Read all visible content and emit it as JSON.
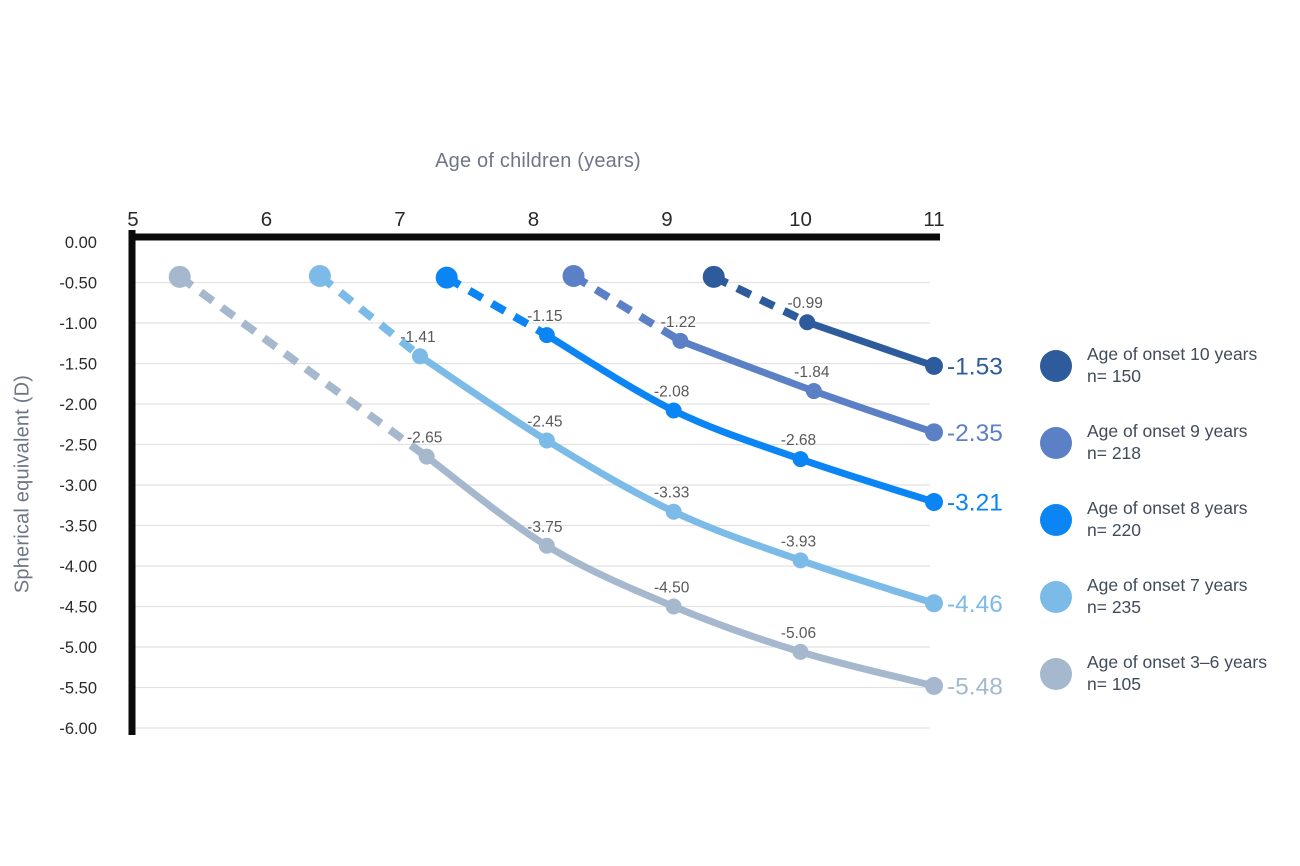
{
  "chart_data": {
    "type": "line",
    "xlabel": "Age of children (years)",
    "ylabel": "Spherical equivalent (D)",
    "xlim": [
      5,
      11
    ],
    "ylim": [
      -6,
      0
    ],
    "x_ticks": [
      "5",
      "6",
      "7",
      "8",
      "9",
      "10",
      "11"
    ],
    "y_ticks": [
      {
        "value": 0,
        "label": "0.00"
      },
      {
        "value": -0.5,
        "label": "-0.50"
      },
      {
        "value": -1,
        "label": "-1.00"
      },
      {
        "value": -1.5,
        "label": "-1.50"
      },
      {
        "value": -2,
        "label": "-2.00"
      },
      {
        "value": -2.5,
        "label": "-2.50"
      },
      {
        "value": -3,
        "label": "-3.00"
      },
      {
        "value": -3.5,
        "label": "-3.50"
      },
      {
        "value": -4,
        "label": "-4.00"
      },
      {
        "value": -4.5,
        "label": "-4.50"
      },
      {
        "value": -5,
        "label": "-5.00"
      },
      {
        "value": -5.5,
        "label": "-5.50"
      },
      {
        "value": -6,
        "label": "-6.00"
      }
    ],
    "grid": "horizontal",
    "legend_position": "right",
    "series": [
      {
        "name": "Age of onset 10 years",
        "n_label": "n= 150",
        "color": "#2E5B9C",
        "dash_until_index": 1,
        "points": [
          {
            "x": 9.35,
            "y": -0.43
          },
          {
            "x": 10.05,
            "y": -0.99,
            "label": "-0.99"
          },
          {
            "x": 11,
            "y": -1.53
          }
        ],
        "end_label": "-1.53"
      },
      {
        "name": "Age of onset 9 years",
        "n_label": "n= 218",
        "color": "#5C80C6",
        "dash_until_index": 1,
        "points": [
          {
            "x": 8.3,
            "y": -0.42
          },
          {
            "x": 9.1,
            "y": -1.22,
            "label": "-1.22"
          },
          {
            "x": 10.1,
            "y": -1.84,
            "label": "-1.84"
          },
          {
            "x": 11,
            "y": -2.35
          }
        ],
        "end_label": "-2.35"
      },
      {
        "name": "Age of onset 8 years",
        "n_label": "n= 220",
        "color": "#0C85F4",
        "dash_until_index": 1,
        "points": [
          {
            "x": 7.35,
            "y": -0.44
          },
          {
            "x": 8.1,
            "y": -1.15,
            "label": "-1.15"
          },
          {
            "x": 9.05,
            "y": -2.08,
            "label": "-2.08"
          },
          {
            "x": 10,
            "y": -2.68,
            "label": "-2.68"
          },
          {
            "x": 11,
            "y": -3.21
          }
        ],
        "end_label": "-3.21"
      },
      {
        "name": "Age of onset 7 years",
        "n_label": "n= 235",
        "color": "#7CBBE8",
        "dash_until_index": 1,
        "points": [
          {
            "x": 6.4,
            "y": -0.42
          },
          {
            "x": 7.15,
            "y": -1.41,
            "label": "-1.41"
          },
          {
            "x": 8.1,
            "y": -2.45,
            "label": "-2.45"
          },
          {
            "x": 9.05,
            "y": -3.33,
            "label": "-3.33"
          },
          {
            "x": 10,
            "y": -3.93,
            "label": "-3.93"
          },
          {
            "x": 11,
            "y": -4.46
          }
        ],
        "end_label": "-4.46"
      },
      {
        "name": "Age of onset 3–6 years",
        "n_label": "n= 105",
        "color": "#A5B8CD",
        "dash_until_index": 1,
        "points": [
          {
            "x": 5.35,
            "y": -0.43
          },
          {
            "x": 7.2,
            "y": -2.65,
            "label": "-2.65"
          },
          {
            "x": 8.1,
            "y": -3.75,
            "label": "-3.75"
          },
          {
            "x": 9.05,
            "y": -4.5,
            "label": "-4.50"
          },
          {
            "x": 10,
            "y": -5.06,
            "label": "-5.06"
          },
          {
            "x": 11,
            "y": -5.48
          }
        ],
        "end_label": "-5.48"
      }
    ]
  },
  "colors": {
    "background": "#ffffff",
    "axis": "#0b0b0b",
    "grid": "#e2e2e2",
    "tick_label": "#2b2b2b",
    "axis_title": "#6d7687",
    "data_label": "#595959",
    "legend_text": "#414b59"
  }
}
